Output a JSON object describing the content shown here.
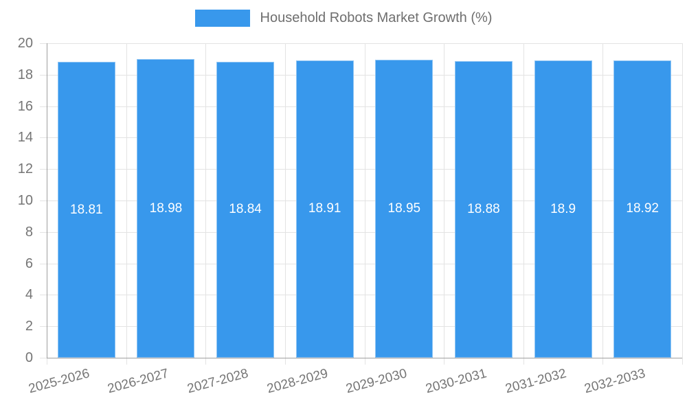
{
  "legend": {
    "label": "Household Robots Market Growth (%)"
  },
  "chart_data": {
    "type": "bar",
    "title": "Household Robots Market Growth (%)",
    "categories": [
      "2025-2026",
      "2026-2027",
      "2027-2028",
      "2028-2029",
      "2029-2030",
      "2030-2031",
      "2031-2032",
      "2032-2033"
    ],
    "values": [
      18.81,
      18.98,
      18.84,
      18.91,
      18.95,
      18.88,
      18.9,
      18.92
    ],
    "value_labels": [
      "18.81",
      "18.98",
      "18.84",
      "18.91",
      "18.95",
      "18.88",
      "18.9",
      "18.92"
    ],
    "xlabel": "",
    "ylabel": "",
    "ylim": [
      0,
      20
    ],
    "ytick_step": 2,
    "ytick_labels": [
      "0",
      "2",
      "4",
      "6",
      "8",
      "10",
      "12",
      "14",
      "16",
      "18",
      "20"
    ],
    "grid": true,
    "legend_position": "top",
    "colors": {
      "bar": "#3898ec",
      "bar_value_text": "#ffffff",
      "axis_text": "#757575",
      "legend_text": "#6e6e6e",
      "gridline": "#e3e3e3",
      "axis_line": "#9e9e9e",
      "background": "#ffffff"
    }
  }
}
